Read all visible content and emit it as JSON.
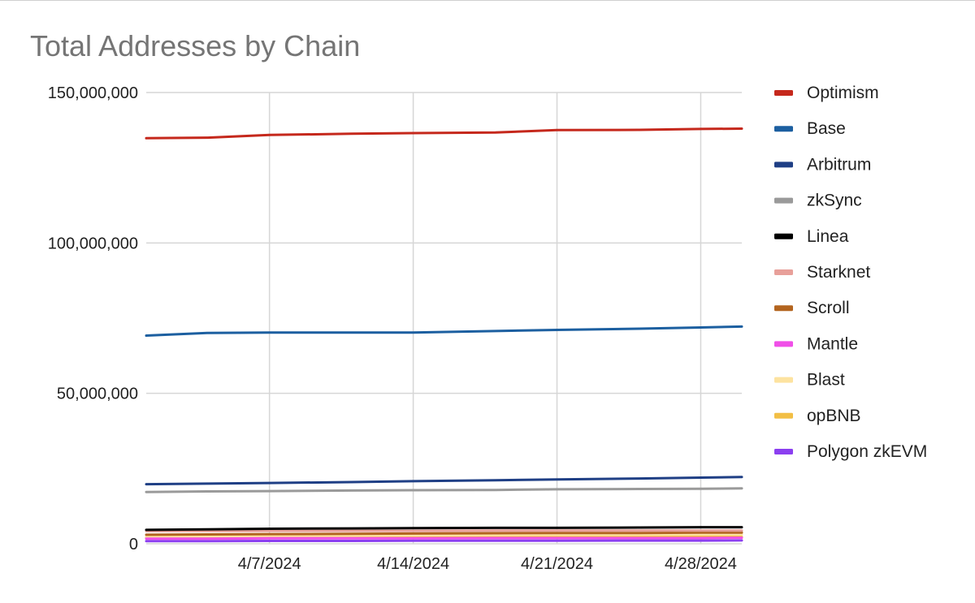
{
  "chart_data": {
    "type": "line",
    "title": "Total Addresses by Chain",
    "xlabel": "",
    "ylabel": "",
    "x": [
      "4/1/2024",
      "4/4/2024",
      "4/7/2024",
      "4/11/2024",
      "4/14/2024",
      "4/18/2024",
      "4/21/2024",
      "4/25/2024",
      "4/28/2024",
      "4/30/2024"
    ],
    "x_ticks": [
      "4/7/2024",
      "4/14/2024",
      "4/21/2024",
      "4/28/2024"
    ],
    "y_ticks": [
      "0",
      "50,000,000",
      "100,000,000",
      "150,000,000"
    ],
    "y_tick_values": [
      0,
      50000000,
      100000000,
      150000000
    ],
    "ylim": [
      0,
      150000000
    ],
    "xlim": [
      "4/1/2024",
      "4/30/2024"
    ],
    "grid": true,
    "legend_position": "right",
    "series": [
      {
        "name": "Optimism",
        "color": "#c5281c",
        "values": [
          134800000,
          135000000,
          135900000,
          136300000,
          136500000,
          136700000,
          137500000,
          137600000,
          137900000,
          138000000
        ]
      },
      {
        "name": "Base",
        "color": "#1c5fa0",
        "values": [
          69200000,
          70100000,
          70200000,
          70200000,
          70200000,
          70700000,
          71100000,
          71500000,
          71900000,
          72200000
        ]
      },
      {
        "name": "Arbitrum",
        "color": "#1f3f85",
        "values": [
          19800000,
          20000000,
          20200000,
          20500000,
          20800000,
          21100000,
          21400000,
          21700000,
          22000000,
          22200000
        ]
      },
      {
        "name": "zkSync",
        "color": "#9a9a9a",
        "values": [
          17200000,
          17400000,
          17500000,
          17700000,
          17800000,
          17900000,
          18100000,
          18200000,
          18300000,
          18400000
        ]
      },
      {
        "name": "Linea",
        "color": "#000000",
        "values": [
          4600000,
          4800000,
          5000000,
          5100000,
          5200000,
          5300000,
          5300000,
          5400000,
          5500000,
          5500000
        ]
      },
      {
        "name": "Starknet",
        "color": "#e8a09a",
        "values": [
          4200000,
          4200000,
          4300000,
          4300000,
          4300000,
          4400000,
          4400000,
          4400000,
          4400000,
          4400000
        ]
      },
      {
        "name": "Scroll",
        "color": "#b3641f",
        "values": [
          3000000,
          3100000,
          3200000,
          3300000,
          3400000,
          3500000,
          3600000,
          3600000,
          3700000,
          3700000
        ]
      },
      {
        "name": "Mantle",
        "color": "#f04fe8",
        "values": [
          1700000,
          1700000,
          1800000,
          1800000,
          1800000,
          1900000,
          1900000,
          1900000,
          1900000,
          2000000
        ]
      },
      {
        "name": "Blast",
        "color": "#fde3a0",
        "values": [
          2400000,
          2500000,
          2600000,
          2700000,
          2800000,
          2900000,
          3000000,
          3000000,
          3100000,
          3100000
        ]
      },
      {
        "name": "opBNB",
        "color": "#f2bf45",
        "values": [
          2000000,
          2000000,
          2100000,
          2100000,
          2200000,
          2200000,
          2200000,
          2300000,
          2300000,
          2300000
        ]
      },
      {
        "name": "Polygon zkEVM",
        "color": "#8b3ff0",
        "values": [
          900000,
          900000,
          950000,
          950000,
          1000000,
          1000000,
          1000000,
          1050000,
          1050000,
          1100000
        ]
      }
    ]
  }
}
